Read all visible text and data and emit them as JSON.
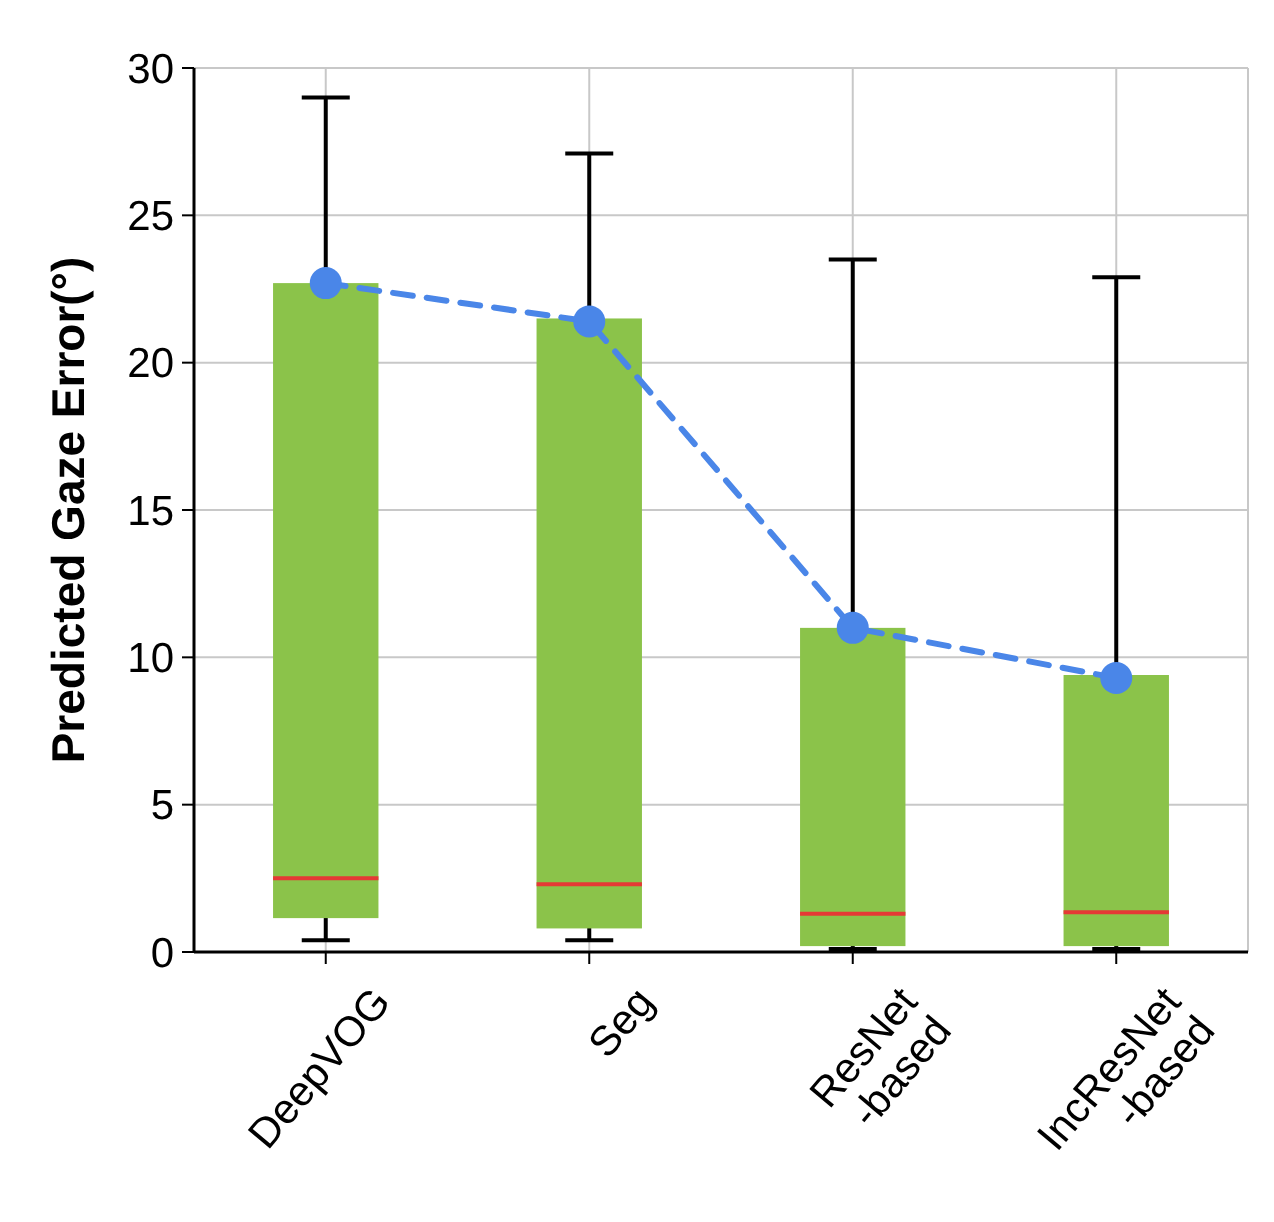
{
  "chart_data": {
    "type": "box",
    "ylabel": "Predicted Gaze Error(°)",
    "categories": [
      "DeepVOG",
      "Seg",
      "ResNet\n-based",
      "IncResNet\n-based"
    ],
    "ylim": [
      0,
      30
    ],
    "yticks": [
      0,
      5,
      10,
      15,
      20,
      25,
      30
    ],
    "grid": true,
    "color": "#8bc34a",
    "boxes": [
      {
        "low": 0.4,
        "q1": 1.15,
        "median": 2.5,
        "q3": 22.7,
        "high": 29.0
      },
      {
        "low": 0.4,
        "q1": 0.8,
        "median": 2.3,
        "q3": 21.5,
        "high": 27.1
      },
      {
        "low": 0.1,
        "q1": 0.2,
        "median": 1.3,
        "q3": 11.0,
        "high": 23.5
      },
      {
        "low": 0.1,
        "q1": 0.2,
        "median": 1.35,
        "q3": 9.4,
        "high": 22.9
      }
    ],
    "series": [
      {
        "type": "line",
        "color": "#4a86e8",
        "values": [
          22.7,
          21.4,
          11.0,
          9.3
        ],
        "marker": "circle",
        "line_style": "dashed"
      }
    ]
  }
}
